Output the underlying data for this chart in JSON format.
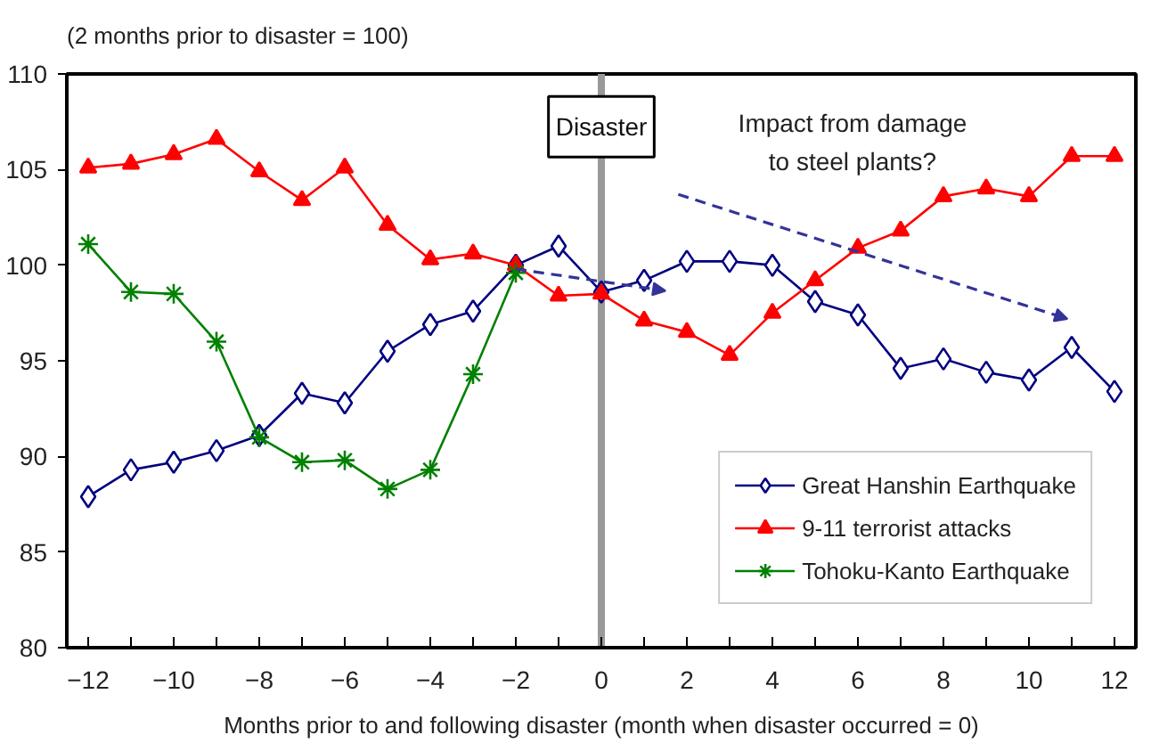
{
  "chart_data": {
    "type": "line",
    "ylabel": "(2 months prior to disaster = 100)",
    "xlabel": "Months prior to and following disaster (month when disaster occurred = 0)",
    "x": [
      -12,
      -11,
      -10,
      -9,
      -8,
      -7,
      -6,
      -5,
      -4,
      -3,
      -2,
      -1,
      0,
      1,
      2,
      3,
      4,
      5,
      6,
      7,
      8,
      9,
      10,
      11,
      12
    ],
    "series": [
      {
        "name": "Great Hanshin Earthquake",
        "color": "#000080",
        "marker": "diamond",
        "values": [
          87.9,
          89.3,
          89.7,
          90.3,
          91.1,
          93.3,
          92.8,
          95.5,
          96.9,
          97.6,
          100.0,
          101.0,
          98.6,
          99.2,
          100.2,
          100.2,
          100.0,
          98.1,
          97.4,
          94.6,
          95.1,
          94.4,
          94.0,
          95.7,
          93.4
        ]
      },
      {
        "name": "9-11 terrorist attacks",
        "color": "#ff0000",
        "marker": "triangle",
        "values": [
          105.1,
          105.3,
          105.8,
          106.6,
          104.9,
          103.4,
          105.1,
          102.1,
          100.3,
          100.6,
          100.0,
          98.4,
          98.5,
          97.1,
          96.5,
          95.3,
          97.5,
          99.2,
          100.9,
          101.8,
          103.6,
          104.0,
          103.6,
          105.7,
          105.7
        ]
      },
      {
        "name": "Tohoku-Kanto Earthquake",
        "color": "#008000",
        "marker": "cross",
        "values": [
          101.1,
          98.6,
          98.5,
          96.0,
          91.0,
          89.7,
          89.8,
          88.3,
          89.3,
          94.3,
          99.6,
          null,
          null,
          null,
          null,
          null,
          null,
          null,
          null,
          null,
          null,
          null,
          null,
          null,
          null
        ]
      }
    ],
    "xlim": [
      -12.5,
      12.5
    ],
    "ylim": [
      80,
      110
    ],
    "xticks": [
      -12,
      {
        "value": -11,
        "label": null
      },
      -10,
      {
        "value": -9,
        "label": null
      },
      -8,
      {
        "value": -7,
        "label": null
      },
      -6,
      {
        "value": -5,
        "label": null
      },
      -4,
      {
        "value": -3,
        "label": null
      },
      -2,
      {
        "value": -1,
        "label": null
      },
      0,
      {
        "value": 1,
        "label": null
      },
      2,
      {
        "value": 3,
        "label": null
      },
      4,
      {
        "value": 5,
        "label": null
      },
      6,
      {
        "value": 7,
        "label": null
      },
      8,
      {
        "value": 9,
        "label": null
      },
      10,
      {
        "value": 11,
        "label": null
      },
      12
    ],
    "yticks": [
      80,
      85,
      90,
      95,
      100,
      105,
      110
    ],
    "ref_lines": [
      {
        "axis": "x",
        "value": 0,
        "label": "Disaster",
        "color": "#999999"
      }
    ],
    "annotations": [
      "Impact from damage\nto steel plants?"
    ],
    "grid": false,
    "legend": "bottom right",
    "line_style": "solid"
  }
}
